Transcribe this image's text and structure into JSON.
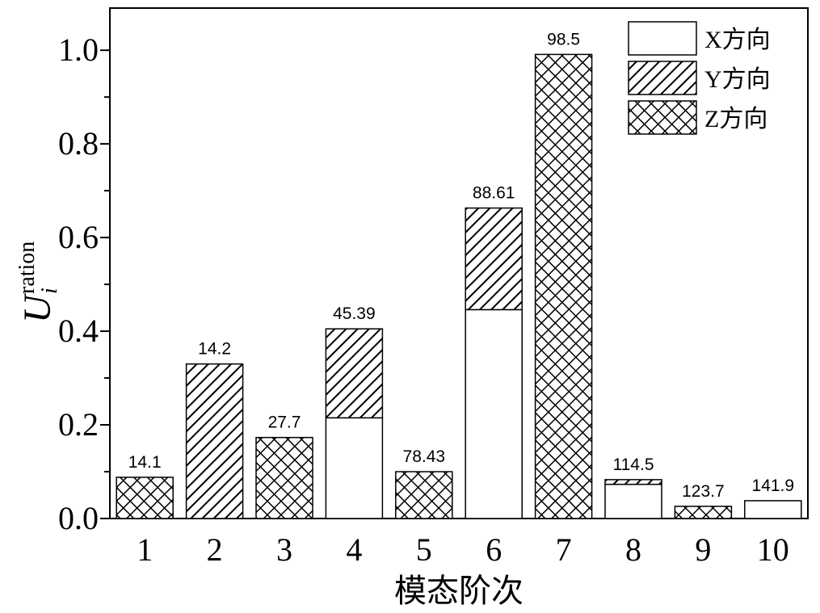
{
  "chart_data": {
    "type": "bar",
    "stacked": true,
    "ylabel": {
      "main": "U",
      "sup": "ration",
      "sub": "i"
    },
    "xlabel": "模态阶次",
    "categories": [
      "1",
      "2",
      "3",
      "4",
      "5",
      "6",
      "7",
      "8",
      "9",
      "10"
    ],
    "series": [
      {
        "name": "X方向",
        "pattern": "none",
        "color": "#000000",
        "values": [
          null,
          null,
          null,
          0.215,
          null,
          0.446,
          null,
          0.073,
          null,
          0.038
        ]
      },
      {
        "name": "Y方向",
        "pattern": "hatch",
        "color": "#000000",
        "values": [
          null,
          0.33,
          null,
          0.19,
          null,
          0.217,
          null,
          0.01,
          null,
          null
        ]
      },
      {
        "name": "Z方向",
        "pattern": "crosshatch",
        "color": "#000000",
        "values": [
          0.088,
          null,
          0.173,
          null,
          0.1,
          null,
          0.991,
          null,
          0.026,
          null
        ]
      }
    ],
    "top_labels": [
      14.1,
      14.2,
      27.7,
      45.39,
      78.43,
      88.61,
      98.5,
      114.5,
      123.7,
      141.9
    ],
    "ylim": [
      0,
      1.09
    ],
    "yticks": [
      {
        "value": 0,
        "label": "0.0"
      },
      0.2,
      0.4,
      0.6,
      0.8,
      {
        "value": 1,
        "label": "1.0"
      }
    ],
    "legend": "top-right"
  }
}
